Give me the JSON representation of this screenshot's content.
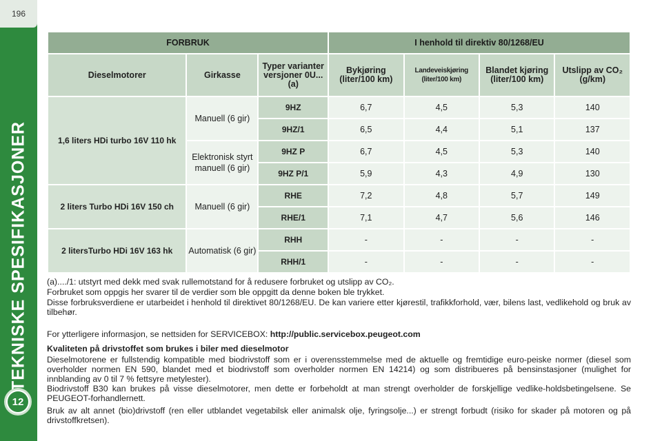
{
  "page": {
    "number": "196",
    "section_title": "TEKNISKE SPESIFIKASJONER",
    "chapter": "12"
  },
  "table": {
    "header1": [
      "FORBRUK",
      "I henhold til direktiv 80/1268/EU"
    ],
    "header2": {
      "engine": "Dieselmotorer",
      "gearbox": "Girkasse",
      "variant": "Typer varianter versjoner 0U... (a)",
      "urban": "Bykjøring (liter/100 km)",
      "extra_urban": "Landeveiskjøring (liter/100 km)",
      "combined": "Blandet kjøring (liter/100 km)",
      "co2": "Utslipp av CO₂ (g/km)"
    },
    "rows": [
      {
        "engine": "1,6 liters HDi turbo 16V 110 hk",
        "gearbox": "Manuell (6 gir)",
        "variant": "9HZ",
        "urban": "6,7",
        "extra": "4,5",
        "combined": "5,3",
        "co2": "140"
      },
      {
        "variant": "9HZ/1",
        "urban": "6,5",
        "extra": "4,4",
        "combined": "5,1",
        "co2": "137"
      },
      {
        "gearbox": "Elektronisk styrt manuell (6 gir)",
        "variant": "9HZ P",
        "urban": "6,7",
        "extra": "4,5",
        "combined": "5,3",
        "co2": "140"
      },
      {
        "variant": "9HZ P/1",
        "urban": "5,9",
        "extra": "4,3",
        "combined": "4,9",
        "co2": "130"
      },
      {
        "engine": "2 liters Turbo HDi 16V 150 ch",
        "gearbox": "Manuell (6 gir)",
        "variant": "RHE",
        "urban": "7,2",
        "extra": "4,8",
        "combined": "5,7",
        "co2": "149"
      },
      {
        "variant": "RHE/1",
        "urban": "7,1",
        "extra": "4,7",
        "combined": "5,6",
        "co2": "146"
      },
      {
        "engine": "2 litersTurbo HDi 16V 163 hk",
        "gearbox": "Automatisk (6 gir)",
        "variant": "RHH",
        "urban": "-",
        "extra": "-",
        "combined": "-",
        "co2": "-"
      },
      {
        "variant": "RHH/1",
        "urban": "-",
        "extra": "-",
        "combined": "-",
        "co2": "-"
      }
    ]
  },
  "notes": {
    "footnote": "(a)..../1: utstyrt med dekk med svak rullemotstand for å redusere forbruket og utslipp av CO₂.",
    "disclaimer1": "Forbruket som oppgis her svarer til de verdier som ble oppgitt da denne boken ble trykket.",
    "disclaimer2": "Disse forbruksverdiene er utarbeidet i henhold til direktivet 80/1268/EU. De kan variere etter kjørestil, trafikkforhold, vær, bilens last, vedlikehold og bruk av tilbehør.",
    "more_info": "For ytterligere informasjon, se nettsiden for SERVICEBOX: ",
    "url": "http://public.servicebox.peugeot.com",
    "heading": "Kvaliteten på drivstoffet som brukes i biler med dieselmotor",
    "p1": "Dieselmotorene er fullstendig kompatible med biodrivstoff som er i overensstemmelse med de aktuelle og fremtidige euro-peiske normer (diesel som overholder normen EN 590, blandet med et biodrivstoff som overholder normen EN 14214) og som distribueres på bensinstasjoner (mulighet for innblanding av 0 til 7 % fettsyre metylester).",
    "p2": "Biodrivstoff B30 kan brukes på visse dieselmotorer, men dette er forbeholdt at man strengt overholder de forskjellige vedlike-holdsbetingelsene. Se PEUGEOT-forhandlernett.",
    "p3": "Bruk av alt annet (bio)drivstoff (ren eller utblandet vegetabilsk eller animalsk olje, fyringsolje...) er strengt forbudt (risiko for skader på motoren og på drivstoffkretsen)."
  }
}
